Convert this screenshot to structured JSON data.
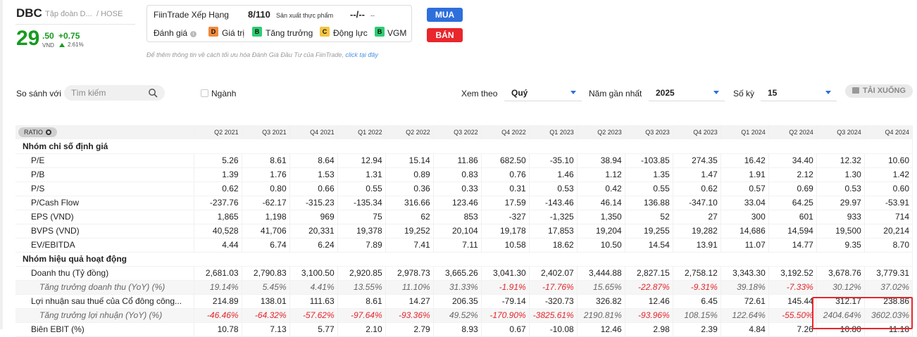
{
  "stock": {
    "ticker": "DBC",
    "company": "Tập đoàn D...",
    "exchange": "/ HOSE",
    "price_int": "29",
    "price_dec": ".50",
    "price_unit": "VND",
    "change": "+0.75",
    "change_pct": "2.61%"
  },
  "fiintrade": {
    "title": "FiinTrade Xếp Hạng",
    "rank": "8/110",
    "sector": "Sản xuất thực phẩm",
    "dash": "--/--",
    "dash_small": "--",
    "eval_label": "Đánh giá",
    "grades": [
      {
        "letter": "D",
        "label": "Giá trị",
        "color": "#f08a3c"
      },
      {
        "letter": "B",
        "label": "Tăng trưởng",
        "color": "#2ecc71"
      },
      {
        "letter": "C",
        "label": "Động lực",
        "color": "#f5c542"
      },
      {
        "letter": "B",
        "label": "VGM",
        "color": "#2ecc71"
      }
    ],
    "note": "Để thêm thông tin về cách tối ưu hóa Đánh Giá Đầu Tư của FiinTrade,",
    "note_link": "click tại đây"
  },
  "actions": {
    "buy": "MUA",
    "sell": "BÁN"
  },
  "controls": {
    "compare_label": "So sánh với",
    "search_placeholder": "Tìm kiếm",
    "industry_label": "Ngành",
    "view_label": "Xem theo",
    "view_value": "Quý",
    "year_label": "Năm gần nhất",
    "year_value": "2025",
    "periods_label": "Số kỳ",
    "periods_value": "15",
    "download": "TẢI XUỐNG"
  },
  "table": {
    "ratio_label": "RATIO",
    "columns": [
      "Q2 2021",
      "Q3 2021",
      "Q4 2021",
      "Q1 2022",
      "Q2 2022",
      "Q3 2022",
      "Q4 2022",
      "Q1 2023",
      "Q2 2023",
      "Q3 2023",
      "Q4 2023",
      "Q1 2024",
      "Q2 2024",
      "Q3 2024",
      "Q4 2024"
    ],
    "group_valuation": "Nhóm chỉ số định giá",
    "group_performance": "Nhóm hiệu quả hoạt động",
    "rows": [
      {
        "label": "P/E",
        "type": "row",
        "values": [
          "5.26",
          "8.61",
          "8.64",
          "12.94",
          "15.14",
          "11.86",
          "682.50",
          "-35.10",
          "38.94",
          "-103.85",
          "274.35",
          "16.42",
          "34.40",
          "12.32",
          "10.60"
        ]
      },
      {
        "label": "P/B",
        "type": "row",
        "values": [
          "1.39",
          "1.76",
          "1.53",
          "1.31",
          "0.89",
          "0.83",
          "0.76",
          "1.46",
          "1.12",
          "1.35",
          "1.47",
          "1.91",
          "2.12",
          "1.30",
          "1.42"
        ]
      },
      {
        "label": "P/S",
        "type": "row",
        "values": [
          "0.62",
          "0.80",
          "0.66",
          "0.55",
          "0.36",
          "0.33",
          "0.31",
          "0.53",
          "0.42",
          "0.55",
          "0.62",
          "0.57",
          "0.69",
          "0.53",
          "0.60"
        ]
      },
      {
        "label": "P/Cash Flow",
        "type": "row",
        "values": [
          "-237.76",
          "-62.17",
          "-315.23",
          "-135.34",
          "316.66",
          "123.46",
          "17.59",
          "-143.46",
          "46.14",
          "136.88",
          "-347.10",
          "33.04",
          "64.25",
          "29.97",
          "-53.91"
        ]
      },
      {
        "label": "EPS (VND)",
        "type": "row",
        "values": [
          "1,865",
          "1,198",
          "969",
          "75",
          "62",
          "853",
          "-327",
          "-1,325",
          "1,350",
          "52",
          "27",
          "300",
          "601",
          "933",
          "714"
        ]
      },
      {
        "label": "BVPS (VND)",
        "type": "row",
        "values": [
          "40,528",
          "41,706",
          "20,331",
          "19,378",
          "19,252",
          "20,104",
          "19,178",
          "17,853",
          "19,204",
          "19,255",
          "19,282",
          "14,686",
          "14,594",
          "19,500",
          "20,214"
        ]
      },
      {
        "label": "EV/EBITDA",
        "type": "row",
        "values": [
          "4.44",
          "6.74",
          "6.24",
          "7.89",
          "7.41",
          "7.11",
          "10.58",
          "18.62",
          "10.50",
          "14.54",
          "13.91",
          "11.07",
          "14.77",
          "9.35",
          "8.70"
        ]
      }
    ],
    "rows2": [
      {
        "label": "Doanh thu (Tỷ đồng)",
        "type": "row",
        "values": [
          "2,681.03",
          "2,790.83",
          "3,100.50",
          "2,920.85",
          "2,978.73",
          "3,665.26",
          "3,041.30",
          "2,402.07",
          "3,444.88",
          "2,827.15",
          "2,758.12",
          "3,343.30",
          "3,192.52",
          "3,678.76",
          "3,779.31"
        ]
      },
      {
        "label": "Tăng trưởng doanh thu (YoY) (%)",
        "type": "sub",
        "values": [
          "19.14%",
          "5.45%",
          "4.41%",
          "13.55%",
          "11.10%",
          "31.33%",
          "-1.91%",
          "-17.76%",
          "15.65%",
          "-22.87%",
          "-9.31%",
          "39.18%",
          "-7.33%",
          "30.12%",
          "37.02%"
        ]
      },
      {
        "label": "Lợi nhuận sau thuế của Cổ đông công...",
        "type": "row",
        "values": [
          "214.89",
          "138.01",
          "111.63",
          "8.61",
          "14.27",
          "206.35",
          "-79.14",
          "-320.73",
          "326.82",
          "12.46",
          "6.45",
          "72.61",
          "145.44",
          "312.17",
          "238.86"
        ]
      },
      {
        "label": "Tăng trưởng lợi nhuận (YoY) (%)",
        "type": "sub",
        "values": [
          "-46.46%",
          "-64.32%",
          "-57.62%",
          "-97.64%",
          "-93.36%",
          "49.52%",
          "-170.90%",
          "-3825.61%",
          "2190.81%",
          "-93.96%",
          "108.15%",
          "122.64%",
          "-55.50%",
          "2404.64%",
          "3602.03%"
        ]
      },
      {
        "label": "Biên EBIT (%)",
        "type": "row",
        "values": [
          "10.78",
          "7.13",
          "5.77",
          "2.10",
          "2.79",
          "8.93",
          "0.67",
          "-10.08",
          "12.46",
          "2.98",
          "2.39",
          "4.84",
          "7.26",
          "10.80",
          "11.18"
        ]
      }
    ]
  }
}
